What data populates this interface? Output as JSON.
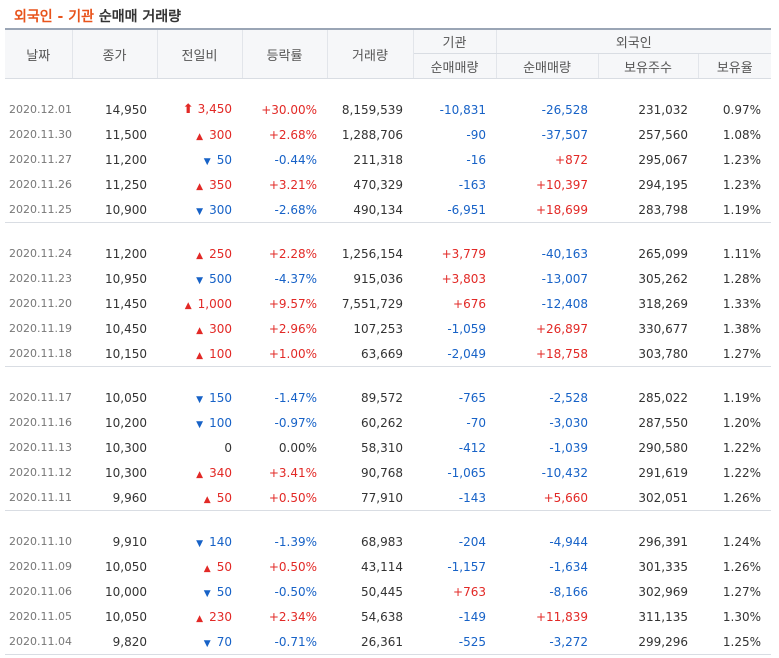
{
  "title": {
    "foreigner": "외국인",
    "sep": " - ",
    "institution": "기관",
    "rest": " 순매매 거래량"
  },
  "header": {
    "date": "날짜",
    "close": "종가",
    "change": "전일비",
    "rate": "등락률",
    "volume": "거래량",
    "institution": "기관",
    "inst_net": "순매매량",
    "foreigner": "외국인",
    "for_net": "순매매량",
    "holdings": "보유주수",
    "ratio": "보유율"
  },
  "colors": {
    "up": "#e22926",
    "down": "#1762c7",
    "title_accent": "#e8541c"
  },
  "rows": [
    {
      "date": "2020.12.01",
      "close": "14,950",
      "change": "3,450",
      "dir": "upper",
      "rate": "+30.00%",
      "volume": "8,159,539",
      "inst": "-10,831",
      "foreign": "-26,528",
      "holdings": "231,032",
      "ratio": "0.97%"
    },
    {
      "date": "2020.11.30",
      "close": "11,500",
      "change": "300",
      "dir": "up",
      "rate": "+2.68%",
      "volume": "1,288,706",
      "inst": "-90",
      "foreign": "-37,507",
      "holdings": "257,560",
      "ratio": "1.08%"
    },
    {
      "date": "2020.11.27",
      "close": "11,200",
      "change": "50",
      "dir": "down",
      "rate": "-0.44%",
      "volume": "211,318",
      "inst": "-16",
      "foreign": "+872",
      "holdings": "295,067",
      "ratio": "1.23%"
    },
    {
      "date": "2020.11.26",
      "close": "11,250",
      "change": "350",
      "dir": "up",
      "rate": "+3.21%",
      "volume": "470,329",
      "inst": "-163",
      "foreign": "+10,397",
      "holdings": "294,195",
      "ratio": "1.23%"
    },
    {
      "date": "2020.11.25",
      "close": "10,900",
      "change": "300",
      "dir": "down",
      "rate": "-2.68%",
      "volume": "490,134",
      "inst": "-6,951",
      "foreign": "+18,699",
      "holdings": "283,798",
      "ratio": "1.19%"
    },
    {
      "date": "2020.11.24",
      "close": "11,200",
      "change": "250",
      "dir": "up",
      "rate": "+2.28%",
      "volume": "1,256,154",
      "inst": "+3,779",
      "foreign": "-40,163",
      "holdings": "265,099",
      "ratio": "1.11%"
    },
    {
      "date": "2020.11.23",
      "close": "10,950",
      "change": "500",
      "dir": "down",
      "rate": "-4.37%",
      "volume": "915,036",
      "inst": "+3,803",
      "foreign": "-13,007",
      "holdings": "305,262",
      "ratio": "1.28%"
    },
    {
      "date": "2020.11.20",
      "close": "11,450",
      "change": "1,000",
      "dir": "up",
      "rate": "+9.57%",
      "volume": "7,551,729",
      "inst": "+676",
      "foreign": "-12,408",
      "holdings": "318,269",
      "ratio": "1.33%"
    },
    {
      "date": "2020.11.19",
      "close": "10,450",
      "change": "300",
      "dir": "up",
      "rate": "+2.96%",
      "volume": "107,253",
      "inst": "-1,059",
      "foreign": "+26,897",
      "holdings": "330,677",
      "ratio": "1.38%"
    },
    {
      "date": "2020.11.18",
      "close": "10,150",
      "change": "100",
      "dir": "up",
      "rate": "+1.00%",
      "volume": "63,669",
      "inst": "-2,049",
      "foreign": "+18,758",
      "holdings": "303,780",
      "ratio": "1.27%"
    },
    {
      "date": "2020.11.17",
      "close": "10,050",
      "change": "150",
      "dir": "down",
      "rate": "-1.47%",
      "volume": "89,572",
      "inst": "-765",
      "foreign": "-2,528",
      "holdings": "285,022",
      "ratio": "1.19%"
    },
    {
      "date": "2020.11.16",
      "close": "10,200",
      "change": "100",
      "dir": "down",
      "rate": "-0.97%",
      "volume": "60,262",
      "inst": "-70",
      "foreign": "-3,030",
      "holdings": "287,550",
      "ratio": "1.20%"
    },
    {
      "date": "2020.11.13",
      "close": "10,300",
      "change": "0",
      "dir": "flat",
      "rate": "0.00%",
      "volume": "58,310",
      "inst": "-412",
      "foreign": "-1,039",
      "holdings": "290,580",
      "ratio": "1.22%"
    },
    {
      "date": "2020.11.12",
      "close": "10,300",
      "change": "340",
      "dir": "up",
      "rate": "+3.41%",
      "volume": "90,768",
      "inst": "-1,065",
      "foreign": "-10,432",
      "holdings": "291,619",
      "ratio": "1.22%"
    },
    {
      "date": "2020.11.11",
      "close": "9,960",
      "change": "50",
      "dir": "up",
      "rate": "+0.50%",
      "volume": "77,910",
      "inst": "-143",
      "foreign": "+5,660",
      "holdings": "302,051",
      "ratio": "1.26%"
    },
    {
      "date": "2020.11.10",
      "close": "9,910",
      "change": "140",
      "dir": "down",
      "rate": "-1.39%",
      "volume": "68,983",
      "inst": "-204",
      "foreign": "-4,944",
      "holdings": "296,391",
      "ratio": "1.24%"
    },
    {
      "date": "2020.11.09",
      "close": "10,050",
      "change": "50",
      "dir": "up",
      "rate": "+0.50%",
      "volume": "43,114",
      "inst": "-1,157",
      "foreign": "-1,634",
      "holdings": "301,335",
      "ratio": "1.26%"
    },
    {
      "date": "2020.11.06",
      "close": "10,000",
      "change": "50",
      "dir": "down",
      "rate": "-0.50%",
      "volume": "50,445",
      "inst": "+763",
      "foreign": "-8,166",
      "holdings": "302,969",
      "ratio": "1.27%"
    },
    {
      "date": "2020.11.05",
      "close": "10,050",
      "change": "230",
      "dir": "up",
      "rate": "+2.34%",
      "volume": "54,638",
      "inst": "-149",
      "foreign": "+11,839",
      "holdings": "311,135",
      "ratio": "1.30%"
    },
    {
      "date": "2020.11.04",
      "close": "9,820",
      "change": "70",
      "dir": "down",
      "rate": "-0.71%",
      "volume": "26,361",
      "inst": "-525",
      "foreign": "-3,272",
      "holdings": "299,296",
      "ratio": "1.25%"
    }
  ]
}
